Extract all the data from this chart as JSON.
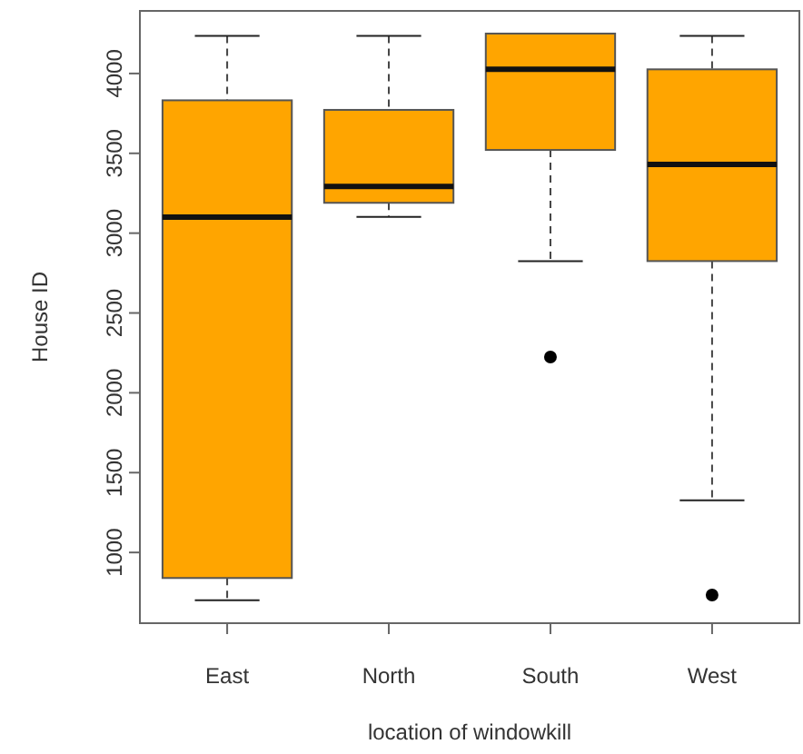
{
  "chart_data": {
    "type": "box",
    "xlabel": "location of windowkill",
    "ylabel": "House ID",
    "categories": [
      "East",
      "North",
      "South",
      "West"
    ],
    "color": "#ffa500",
    "boxes": [
      {
        "low": 700,
        "q1": 840,
        "median": 3100,
        "q3": 3832,
        "high": 4235
      },
      {
        "low": 3102,
        "q1": 3190,
        "median": 3293,
        "q3": 3772,
        "high": 4235
      },
      {
        "low": 2825,
        "q1": 3521,
        "median": 4026,
        "q3": 4250,
        "high": 4250,
        "outliers": [
          2224
        ]
      },
      {
        "low": 1326,
        "q1": 2825,
        "median": 3430,
        "q3": 4026,
        "high": 4235,
        "outliers": [
          733
        ]
      }
    ],
    "ylim": [
      557,
      4392
    ],
    "yticks": [
      1000,
      1500,
      2000,
      2500,
      3000,
      3500,
      4000
    ],
    "grid": false
  }
}
